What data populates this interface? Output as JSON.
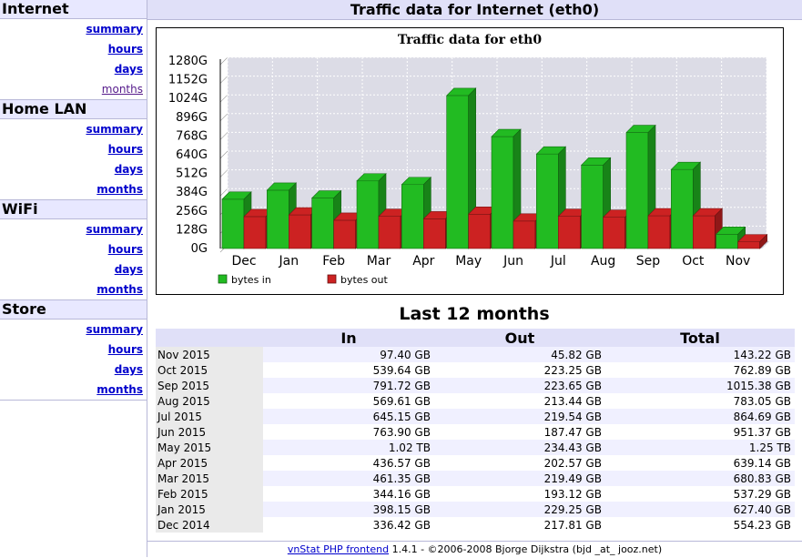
{
  "sidebar": {
    "groups": [
      {
        "title": "Internet",
        "links": [
          "summary",
          "hours",
          "days",
          "months"
        ]
      },
      {
        "title": "Home LAN",
        "links": [
          "summary",
          "hours",
          "days",
          "months"
        ]
      },
      {
        "title": "WiFi",
        "links": [
          "summary",
          "hours",
          "days",
          "months"
        ]
      },
      {
        "title": "Store",
        "links": [
          "summary",
          "hours",
          "days",
          "months"
        ]
      }
    ]
  },
  "header": {
    "title": "Traffic data for Internet (eth0)"
  },
  "chart_data": {
    "type": "bar",
    "title": "Traffic data for eth0",
    "categories": [
      "Dec",
      "Jan",
      "Feb",
      "Mar",
      "Apr",
      "May",
      "Jun",
      "Jul",
      "Aug",
      "Sep",
      "Oct",
      "Nov"
    ],
    "series": [
      {
        "name": "bytes in",
        "color": "#22bb22",
        "values": [
          336.42,
          398.15,
          344.16,
          461.35,
          436.57,
          1044.48,
          763.9,
          645.15,
          569.61,
          791.72,
          539.64,
          97.4
        ]
      },
      {
        "name": "bytes out",
        "color": "#cc2222",
        "values": [
          217.81,
          229.25,
          193.12,
          219.49,
          202.57,
          234.43,
          187.47,
          219.54,
          213.44,
          223.65,
          223.25,
          45.82
        ]
      }
    ],
    "y_ticks": [
      "0G",
      "128G",
      "256G",
      "384G",
      "512G",
      "640G",
      "768G",
      "896G",
      "1024G",
      "1152G",
      "1280G"
    ],
    "ylim": [
      0,
      1280
    ],
    "grid": true,
    "legend_position": "bottom"
  },
  "table": {
    "title": "Last 12 months",
    "headers": [
      "",
      "In",
      "Out",
      "Total"
    ],
    "rows": [
      [
        "Nov 2015",
        "97.40 GB",
        "45.82 GB",
        "143.22 GB"
      ],
      [
        "Oct 2015",
        "539.64 GB",
        "223.25 GB",
        "762.89 GB"
      ],
      [
        "Sep 2015",
        "791.72 GB",
        "223.65 GB",
        "1015.38 GB"
      ],
      [
        "Aug 2015",
        "569.61 GB",
        "213.44 GB",
        "783.05 GB"
      ],
      [
        "Jul 2015",
        "645.15 GB",
        "219.54 GB",
        "864.69 GB"
      ],
      [
        "Jun 2015",
        "763.90 GB",
        "187.47 GB",
        "951.37 GB"
      ],
      [
        "May 2015",
        "1.02 TB",
        "234.43 GB",
        "1.25 TB"
      ],
      [
        "Apr 2015",
        "436.57 GB",
        "202.57 GB",
        "639.14 GB"
      ],
      [
        "Mar 2015",
        "461.35 GB",
        "219.49 GB",
        "680.83 GB"
      ],
      [
        "Feb 2015",
        "344.16 GB",
        "193.12 GB",
        "537.29 GB"
      ],
      [
        "Jan 2015",
        "398.15 GB",
        "229.25 GB",
        "627.40 GB"
      ],
      [
        "Dec 2014",
        "336.42 GB",
        "217.81 GB",
        "554.23 GB"
      ]
    ]
  },
  "footer": {
    "link_text": "vnStat PHP frontend",
    "text": " 1.4.1 - ©2006-2008 Bjorge Dijkstra (bjd _at_ jooz.net)"
  }
}
